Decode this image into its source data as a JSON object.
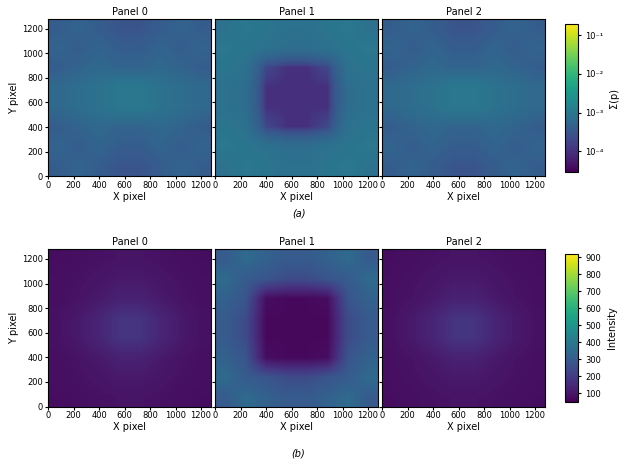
{
  "chart_data": [
    {
      "type": "heatmap",
      "caption": "(a)",
      "log": true,
      "colorbar_label": "Σ(p)",
      "color_range": [
        3e-05,
        0.2
      ],
      "color_ticks": [
        {
          "value": 0.0001,
          "label": "10⁻⁴"
        },
        {
          "value": 0.001,
          "label": "10⁻³"
        },
        {
          "value": 0.01,
          "label": "10⁻²"
        },
        {
          "value": 0.1,
          "label": "10⁻¹"
        }
      ],
      "x_label": "X pixel",
      "y_label": "Y pixel",
      "xlim": [
        0,
        1280
      ],
      "ylim": [
        0,
        1280
      ],
      "xticks": [
        0,
        200,
        400,
        600,
        800,
        1000,
        1200
      ],
      "yticks": [
        0,
        200,
        400,
        600,
        800,
        1000,
        1200
      ],
      "panels": [
        {
          "title": "Panel 0",
          "cells": [
            [
              0.0004,
              0.0005,
              0.0004,
              0.0003,
              0.0003,
              0.0004,
              0.0005,
              0.0004
            ],
            [
              0.0005,
              0.0004,
              0.0005,
              0.0004,
              0.0004,
              0.0005,
              0.0004,
              0.0005
            ],
            [
              0.0004,
              0.0005,
              0.0006,
              0.0005,
              0.0005,
              0.0006,
              0.0005,
              0.0004
            ],
            [
              0.0006,
              0.0007,
              0.0008,
              0.001,
              0.001,
              0.0008,
              0.0007,
              0.0006
            ],
            [
              0.0006,
              0.0007,
              0.0008,
              0.001,
              0.001,
              0.0008,
              0.0007,
              0.0006
            ],
            [
              0.0004,
              0.0005,
              0.0006,
              0.0005,
              0.0005,
              0.0006,
              0.0005,
              0.0004
            ],
            [
              0.0005,
              0.0004,
              0.0005,
              0.0004,
              0.0004,
              0.0005,
              0.0004,
              0.0005
            ],
            [
              0.0004,
              0.0005,
              0.0004,
              0.0003,
              0.0003,
              0.0004,
              0.0005,
              0.0004
            ]
          ]
        },
        {
          "title": "Panel 1",
          "cells": [
            [
              0.0008,
              0.001,
              0.0009,
              0.0008,
              0.0008,
              0.0009,
              0.001,
              0.0008
            ],
            [
              0.001,
              0.0009,
              0.0008,
              0.0007,
              0.0007,
              0.0008,
              0.0009,
              0.001
            ],
            [
              0.0009,
              0.0008,
              0.0002,
              0.0001,
              0.0001,
              0.0002,
              0.0008,
              0.0009
            ],
            [
              0.0008,
              0.0007,
              0.0001,
              0.0001,
              0.0001,
              0.0001,
              0.0007,
              0.0008
            ],
            [
              0.0008,
              0.0007,
              0.0001,
              0.0001,
              0.0001,
              0.0001,
              0.0007,
              0.0008
            ],
            [
              0.0009,
              0.0008,
              0.0002,
              0.0001,
              0.0001,
              0.0002,
              0.0008,
              0.0009
            ],
            [
              0.001,
              0.0009,
              0.0008,
              0.0007,
              0.0007,
              0.0008,
              0.0009,
              0.001
            ],
            [
              0.0008,
              0.001,
              0.0009,
              0.0008,
              0.0008,
              0.0009,
              0.001,
              0.0008
            ]
          ]
        },
        {
          "title": "Panel 2",
          "cells": [
            [
              0.0004,
              0.0005,
              0.0004,
              0.0003,
              0.0003,
              0.0004,
              0.0005,
              0.0004
            ],
            [
              0.0005,
              0.0004,
              0.0005,
              0.0004,
              0.0004,
              0.0005,
              0.0004,
              0.0005
            ],
            [
              0.0004,
              0.0005,
              0.0006,
              0.0005,
              0.0005,
              0.0006,
              0.0005,
              0.0004
            ],
            [
              0.0006,
              0.0007,
              0.0008,
              0.001,
              0.001,
              0.0008,
              0.0007,
              0.0006
            ],
            [
              0.0006,
              0.0007,
              0.0008,
              0.001,
              0.001,
              0.0008,
              0.0007,
              0.0006
            ],
            [
              0.0004,
              0.0005,
              0.0006,
              0.0005,
              0.0005,
              0.0006,
              0.0005,
              0.0004
            ],
            [
              0.0005,
              0.0004,
              0.0005,
              0.0004,
              0.0004,
              0.0005,
              0.0004,
              0.0005
            ],
            [
              0.0004,
              0.0005,
              0.0004,
              0.0003,
              0.0003,
              0.0004,
              0.0005,
              0.0004
            ]
          ]
        }
      ]
    },
    {
      "type": "heatmap",
      "caption": "(b)",
      "log": false,
      "colorbar_label": "Intensity",
      "color_range": [
        50,
        920
      ],
      "color_ticks": [
        100,
        200,
        300,
        400,
        500,
        600,
        700,
        800,
        900
      ],
      "x_label": "X pixel",
      "y_label": "Y pixel",
      "xlim": [
        0,
        1280
      ],
      "ylim": [
        0,
        1280
      ],
      "xticks": [
        0,
        200,
        400,
        600,
        800,
        1000,
        1200
      ],
      "yticks": [
        0,
        200,
        400,
        600,
        800,
        1000,
        1200
      ],
      "panels": [
        {
          "title": "Panel 0",
          "cells": [
            [
              80,
              85,
              90,
              95,
              95,
              90,
              85,
              80
            ],
            [
              85,
              90,
              100,
              110,
              110,
              100,
              90,
              85
            ],
            [
              85,
              95,
              110,
              130,
              130,
              110,
              95,
              85
            ],
            [
              90,
              110,
              140,
              180,
              180,
              140,
              110,
              90
            ],
            [
              90,
              110,
              140,
              180,
              180,
              140,
              110,
              90
            ],
            [
              85,
              95,
              110,
              130,
              130,
              110,
              95,
              85
            ],
            [
              85,
              90,
              100,
              110,
              110,
              100,
              90,
              85
            ],
            [
              80,
              85,
              90,
              95,
              95,
              90,
              85,
              80
            ]
          ]
        },
        {
          "title": "Panel 1",
          "cells": [
            [
              300,
              350,
              320,
              300,
              300,
              320,
              350,
              300
            ],
            [
              350,
              300,
              280,
              250,
              250,
              280,
              300,
              350
            ],
            [
              320,
              280,
              80,
              70,
              70,
              80,
              280,
              320
            ],
            [
              300,
              250,
              70,
              70,
              70,
              70,
              250,
              300
            ],
            [
              300,
              250,
              70,
              70,
              70,
              70,
              250,
              300
            ],
            [
              320,
              280,
              80,
              70,
              70,
              80,
              280,
              320
            ],
            [
              350,
              300,
              280,
              250,
              250,
              280,
              300,
              350
            ],
            [
              300,
              350,
              320,
              300,
              300,
              320,
              350,
              300
            ]
          ]
        },
        {
          "title": "Panel 2",
          "cells": [
            [
              80,
              85,
              90,
              95,
              95,
              90,
              85,
              80
            ],
            [
              85,
              90,
              100,
              110,
              110,
              100,
              90,
              85
            ],
            [
              85,
              95,
              110,
              130,
              130,
              110,
              95,
              85
            ],
            [
              90,
              110,
              140,
              180,
              180,
              140,
              110,
              90
            ],
            [
              90,
              110,
              140,
              180,
              180,
              140,
              110,
              90
            ],
            [
              85,
              95,
              110,
              130,
              130,
              110,
              95,
              85
            ],
            [
              85,
              90,
              100,
              110,
              110,
              100,
              90,
              85
            ],
            [
              80,
              85,
              90,
              95,
              95,
              90,
              85,
              80
            ]
          ]
        }
      ]
    }
  ]
}
